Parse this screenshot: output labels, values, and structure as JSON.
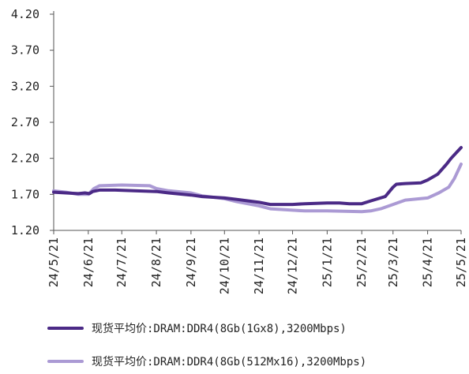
{
  "chart_data": {
    "type": "line",
    "title": "",
    "xlabel": "",
    "ylabel": "",
    "ylim": [
      1.2,
      4.2
    ],
    "yticks": [
      "1.20",
      "1.70",
      "2.20",
      "2.70",
      "3.20",
      "3.70",
      "4.20"
    ],
    "xticks": [
      "24/5/21",
      "24/6/21",
      "24/7/21",
      "24/8/21",
      "24/9/21",
      "24/10/21",
      "24/11/21",
      "24/12/21",
      "25/1/21",
      "25/2/21",
      "25/3/21",
      "25/4/21",
      "25/5/21"
    ],
    "legend_position": "bottom",
    "grid": false,
    "series": [
      {
        "name": "现货平均价:DRAM:DDR4(8Gb(1Gx8),3200Mbps)",
        "color": "#4b2a86",
        "points": [
          [
            "24/5/21",
            1.73
          ],
          [
            "24/6/1",
            1.72
          ],
          [
            "24/6/12",
            1.71
          ],
          [
            "24/6/18",
            1.72
          ],
          [
            "24/6/22",
            1.71
          ],
          [
            "24/6/25",
            1.74
          ],
          [
            "24/7/1",
            1.76
          ],
          [
            "24/7/15",
            1.76
          ],
          [
            "24/8/1",
            1.75
          ],
          [
            "24/8/21",
            1.74
          ],
          [
            "24/9/1",
            1.72
          ],
          [
            "24/9/21",
            1.69
          ],
          [
            "24/10/1",
            1.67
          ],
          [
            "24/10/21",
            1.65
          ],
          [
            "24/11/1",
            1.63
          ],
          [
            "24/11/21",
            1.59
          ],
          [
            "24/12/1",
            1.56
          ],
          [
            "24/12/21",
            1.56
          ],
          [
            "25/1/1",
            1.57
          ],
          [
            "25/1/21",
            1.58
          ],
          [
            "25/2/1",
            1.58
          ],
          [
            "25/2/10",
            1.57
          ],
          [
            "25/2/21",
            1.57
          ],
          [
            "25/3/1",
            1.61
          ],
          [
            "25/3/14",
            1.67
          ],
          [
            "25/3/21",
            1.8
          ],
          [
            "25/3/24",
            1.84
          ],
          [
            "25/4/1",
            1.85
          ],
          [
            "25/4/15",
            1.86
          ],
          [
            "25/4/21",
            1.9
          ],
          [
            "25/4/30",
            1.98
          ],
          [
            "25/5/8",
            2.12
          ],
          [
            "25/5/12",
            2.2
          ],
          [
            "25/5/18",
            2.3
          ],
          [
            "25/5/21",
            2.35
          ]
        ]
      },
      {
        "name": "现货平均价:DRAM:DDR4(8Gb(512Mx16),3200Mbps)",
        "color": "#ab9ad4",
        "points": [
          [
            "24/5/21",
            1.75
          ],
          [
            "24/6/1",
            1.73
          ],
          [
            "24/6/12",
            1.7
          ],
          [
            "24/6/21",
            1.7
          ],
          [
            "24/6/26",
            1.78
          ],
          [
            "24/7/1",
            1.82
          ],
          [
            "24/7/21",
            1.83
          ],
          [
            "24/8/15",
            1.82
          ],
          [
            "24/8/21",
            1.78
          ],
          [
            "24/9/1",
            1.75
          ],
          [
            "24/9/21",
            1.72
          ],
          [
            "24/10/1",
            1.68
          ],
          [
            "24/10/21",
            1.64
          ],
          [
            "24/11/1",
            1.6
          ],
          [
            "24/11/21",
            1.54
          ],
          [
            "24/12/1",
            1.5
          ],
          [
            "24/12/21",
            1.48
          ],
          [
            "25/1/1",
            1.47
          ],
          [
            "25/1/21",
            1.47
          ],
          [
            "25/2/21",
            1.46
          ],
          [
            "25/3/1",
            1.47
          ],
          [
            "25/3/10",
            1.5
          ],
          [
            "25/3/21",
            1.56
          ],
          [
            "25/4/1",
            1.62
          ],
          [
            "25/4/21",
            1.65
          ],
          [
            "25/5/1",
            1.72
          ],
          [
            "25/5/10",
            1.8
          ],
          [
            "25/5/15",
            1.92
          ],
          [
            "25/5/21",
            2.12
          ]
        ]
      }
    ]
  }
}
